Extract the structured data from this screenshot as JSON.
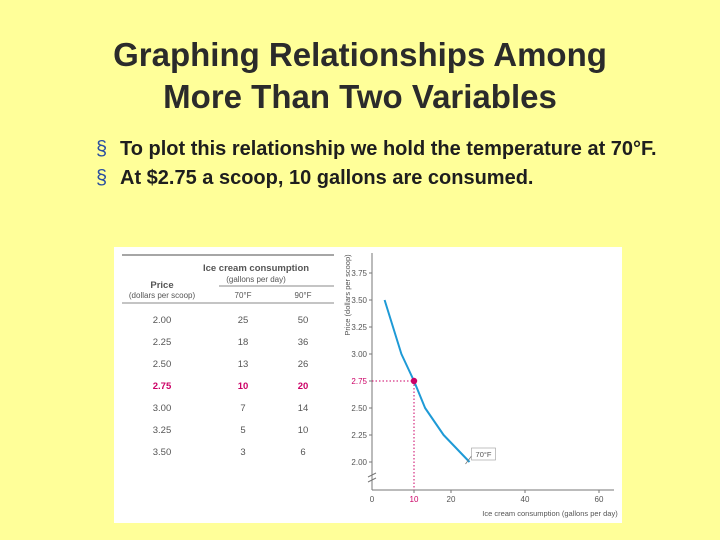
{
  "title_lines": [
    "Graphing Relationships Among",
    "More Than Two Variables"
  ],
  "bullets": [
    {
      "marker": "§",
      "text": "To plot this relationship we hold the temperature at 70°F."
    },
    {
      "marker": "§",
      "text": "At $2.75 a scoop, 10 gallons are consumed."
    }
  ],
  "colors": {
    "background": "#ffff99",
    "highlight": "#cc0066",
    "curve": "#1e9ad6"
  },
  "table": {
    "group_header": "Ice cream consumption",
    "group_subheader": "(gallons per day)",
    "row_header": "Price",
    "row_subheader": "(dollars per scoop)",
    "columns": [
      "70°F",
      "90°F"
    ],
    "rows": [
      {
        "price": "2.00",
        "c70": "25",
        "c90": "50",
        "highlight": false
      },
      {
        "price": "2.25",
        "c70": "18",
        "c90": "36",
        "highlight": false
      },
      {
        "price": "2.50",
        "c70": "13",
        "c90": "26",
        "highlight": false
      },
      {
        "price": "2.75",
        "c70": "10",
        "c90": "20",
        "highlight": true
      },
      {
        "price": "3.00",
        "c70": "7",
        "c90": "14",
        "highlight": false
      },
      {
        "price": "3.25",
        "c70": "5",
        "c90": "10",
        "highlight": false
      },
      {
        "price": "3.50",
        "c70": "3",
        "c90": "6",
        "highlight": false
      }
    ]
  },
  "chart_data": {
    "type": "line",
    "xlabel": "Ice cream consumption (gallons per day)",
    "ylabel": "Price (dollars per scoop)",
    "x_ticks": [
      "0",
      "10",
      "20",
      "40",
      "60"
    ],
    "y_ticks": [
      "2.00",
      "2.25",
      "2.50",
      "2.75",
      "3.00",
      "3.25",
      "3.50",
      "3.75"
    ],
    "series": [
      {
        "name": "70°F",
        "points": [
          [
            25,
            2.0
          ],
          [
            18,
            2.25
          ],
          [
            13,
            2.5
          ],
          [
            10,
            2.75
          ],
          [
            7,
            3.0
          ],
          [
            5,
            3.25
          ],
          [
            3,
            3.5
          ]
        ]
      }
    ],
    "highlight_point": {
      "x": 10,
      "y": 2.75,
      "x_label": "10",
      "y_label": "2.75"
    },
    "axis_break": true,
    "grid": false
  }
}
